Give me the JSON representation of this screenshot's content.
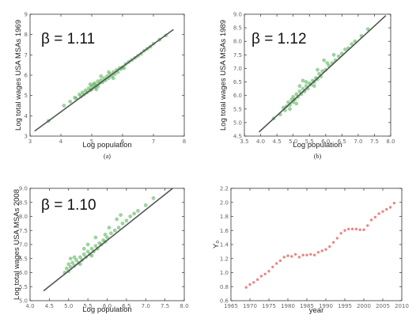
{
  "colors": {
    "scatter": "#4caf50",
    "fit": "#555555",
    "gamma": "#e57373"
  },
  "chart_data": [
    {
      "type": "scatter",
      "annotation": "β = 1.11",
      "xlabel": "Log population",
      "ylabel": "Log total wages USA MSAs 1969",
      "caption": "(a)",
      "xlim": [
        3,
        8
      ],
      "ylim": [
        3,
        9
      ],
      "xticks": [
        3,
        4,
        5,
        6,
        7,
        8
      ],
      "yticks": [
        3,
        4,
        5,
        6,
        7,
        8,
        9
      ],
      "fit_line": {
        "x": [
          3.15,
          7.65
        ],
        "y": [
          3.25,
          8.25
        ]
      },
      "points": [
        [
          3.6,
          3.75
        ],
        [
          4.1,
          4.5
        ],
        [
          4.3,
          4.7
        ],
        [
          4.45,
          4.9
        ],
        [
          4.5,
          4.85
        ],
        [
          4.6,
          5.05
        ],
        [
          4.65,
          4.95
        ],
        [
          4.7,
          5.15
        ],
        [
          4.75,
          5.05
        ],
        [
          4.8,
          5.25
        ],
        [
          4.85,
          5.15
        ],
        [
          4.9,
          5.35
        ],
        [
          4.95,
          5.25
        ],
        [
          5.0,
          5.45
        ],
        [
          5.0,
          5.3
        ],
        [
          5.05,
          5.55
        ],
        [
          5.1,
          5.4
        ],
        [
          5.1,
          5.6
        ],
        [
          5.15,
          5.5
        ],
        [
          5.2,
          5.7
        ],
        [
          5.2,
          5.45
        ],
        [
          5.25,
          5.6
        ],
        [
          5.3,
          5.75
        ],
        [
          5.35,
          5.65
        ],
        [
          5.4,
          5.85
        ],
        [
          5.45,
          5.75
        ],
        [
          5.5,
          5.95
        ],
        [
          5.55,
          5.85
        ],
        [
          5.6,
          6.05
        ],
        [
          5.65,
          5.95
        ],
        [
          5.7,
          6.15
        ],
        [
          5.75,
          6.05
        ],
        [
          5.8,
          6.25
        ],
        [
          5.85,
          6.15
        ],
        [
          5.9,
          6.35
        ],
        [
          5.95,
          6.3
        ],
        [
          6.0,
          6.4
        ],
        [
          6.05,
          6.35
        ],
        [
          6.1,
          6.55
        ],
        [
          6.2,
          6.65
        ],
        [
          6.3,
          6.75
        ],
        [
          6.4,
          6.85
        ],
        [
          6.5,
          6.95
        ],
        [
          6.6,
          7.05
        ],
        [
          6.7,
          7.2
        ],
        [
          6.8,
          7.3
        ],
        [
          6.9,
          7.4
        ],
        [
          7.0,
          7.55
        ],
        [
          7.2,
          7.75
        ],
        [
          7.4,
          7.95
        ],
        [
          5.3,
          5.95
        ],
        [
          5.55,
          6.15
        ],
        [
          4.95,
          5.55
        ],
        [
          5.7,
          5.85
        ],
        [
          5.15,
          5.3
        ]
      ]
    },
    {
      "type": "scatter",
      "annotation": "β = 1.12",
      "xlabel": "Log population",
      "ylabel": "Log total wages USA MSAs 1989",
      "caption": "(b)",
      "xlim": [
        3.5,
        8.0
      ],
      "ylim": [
        4.5,
        9.0
      ],
      "xticks": [
        3.5,
        4.0,
        4.5,
        5.0,
        5.5,
        6.0,
        6.5,
        7.0,
        7.5,
        8.0
      ],
      "yticks": [
        4.5,
        5.0,
        5.5,
        6.0,
        6.5,
        7.0,
        7.5,
        8.0,
        8.5,
        9.0
      ],
      "fit_line": {
        "x": [
          3.95,
          7.85
        ],
        "y": [
          4.65,
          8.95
        ]
      },
      "points": [
        [
          4.4,
          5.15
        ],
        [
          4.6,
          5.3
        ],
        [
          4.7,
          5.55
        ],
        [
          4.75,
          5.45
        ],
        [
          4.8,
          5.6
        ],
        [
          4.85,
          5.75
        ],
        [
          4.9,
          5.65
        ],
        [
          4.95,
          5.85
        ],
        [
          5.0,
          5.75
        ],
        [
          5.0,
          5.95
        ],
        [
          5.05,
          5.85
        ],
        [
          5.1,
          6.05
        ],
        [
          5.15,
          5.95
        ],
        [
          5.2,
          6.15
        ],
        [
          5.25,
          6.05
        ],
        [
          5.3,
          6.25
        ],
        [
          5.35,
          6.15
        ],
        [
          5.4,
          6.35
        ],
        [
          5.45,
          6.25
        ],
        [
          5.5,
          6.45
        ],
        [
          5.55,
          6.4
        ],
        [
          5.6,
          6.55
        ],
        [
          5.65,
          6.5
        ],
        [
          5.7,
          6.65
        ],
        [
          5.75,
          6.6
        ],
        [
          5.8,
          6.8
        ],
        [
          5.85,
          6.7
        ],
        [
          5.9,
          6.9
        ],
        [
          6.0,
          6.95
        ],
        [
          6.1,
          7.1
        ],
        [
          6.2,
          7.2
        ],
        [
          6.3,
          7.3
        ],
        [
          6.4,
          7.45
        ],
        [
          6.5,
          7.55
        ],
        [
          6.6,
          7.7
        ],
        [
          6.7,
          7.75
        ],
        [
          6.8,
          7.9
        ],
        [
          6.9,
          8.0
        ],
        [
          7.1,
          8.2
        ],
        [
          7.3,
          8.45
        ],
        [
          5.2,
          6.35
        ],
        [
          5.4,
          6.5
        ],
        [
          4.9,
          5.5
        ],
        [
          5.65,
          6.35
        ],
        [
          6.05,
          7.2
        ],
        [
          5.95,
          7.3
        ],
        [
          5.3,
          6.55
        ],
        [
          6.25,
          7.5
        ],
        [
          5.1,
          5.7
        ],
        [
          5.75,
          6.95
        ]
      ]
    },
    {
      "type": "scatter",
      "annotation": "β = 1.10",
      "xlabel": "Log population",
      "ylabel": "Log total wages USA MSAs 2008",
      "caption": "",
      "xlim": [
        4.0,
        8.0
      ],
      "ylim": [
        5.0,
        9.0
      ],
      "xticks": [
        4.0,
        4.5,
        5.0,
        5.5,
        6.0,
        6.5,
        7.0,
        7.5,
        8.0
      ],
      "yticks": [
        5.0,
        5.5,
        6.0,
        6.5,
        7.0,
        7.5,
        8.0,
        8.5,
        9.0
      ],
      "fit_line": {
        "x": [
          4.35,
          7.7
        ],
        "y": [
          5.35,
          9.0
        ]
      },
      "points": [
        [
          4.9,
          6.0
        ],
        [
          4.95,
          6.15
        ],
        [
          5.0,
          6.05
        ],
        [
          5.0,
          6.3
        ],
        [
          5.05,
          6.2
        ],
        [
          5.1,
          6.35
        ],
        [
          5.15,
          6.25
        ],
        [
          5.2,
          6.45
        ],
        [
          5.25,
          6.35
        ],
        [
          5.3,
          6.55
        ],
        [
          5.35,
          6.45
        ],
        [
          5.4,
          6.65
        ],
        [
          5.45,
          6.55
        ],
        [
          5.5,
          6.75
        ],
        [
          5.55,
          6.65
        ],
        [
          5.6,
          6.85
        ],
        [
          5.65,
          6.75
        ],
        [
          5.7,
          6.95
        ],
        [
          5.75,
          6.85
        ],
        [
          5.8,
          7.05
        ],
        [
          5.85,
          7.0
        ],
        [
          5.9,
          7.15
        ],
        [
          5.95,
          7.1
        ],
        [
          6.0,
          7.25
        ],
        [
          6.1,
          7.4
        ],
        [
          6.2,
          7.5
        ],
        [
          6.3,
          7.6
        ],
        [
          6.4,
          7.75
        ],
        [
          6.5,
          7.85
        ],
        [
          6.6,
          8.0
        ],
        [
          6.7,
          8.1
        ],
        [
          6.8,
          8.2
        ],
        [
          7.0,
          8.4
        ],
        [
          7.2,
          8.65
        ],
        [
          5.05,
          6.5
        ],
        [
          5.3,
          6.3
        ],
        [
          5.5,
          7.0
        ],
        [
          5.7,
          7.25
        ],
        [
          6.05,
          7.6
        ],
        [
          6.25,
          7.9
        ],
        [
          5.15,
          6.55
        ],
        [
          5.6,
          6.6
        ],
        [
          6.35,
          8.05
        ],
        [
          5.95,
          7.35
        ],
        [
          5.4,
          6.85
        ]
      ]
    },
    {
      "type": "scatter",
      "xlabel": "year",
      "ylabel": "Y₀",
      "caption": "",
      "xlim": [
        1965,
        2010
      ],
      "ylim": [
        0.6,
        2.2
      ],
      "xticks": [
        1965,
        1970,
        1975,
        1980,
        1985,
        1990,
        1995,
        2000,
        2005,
        2010
      ],
      "yticks": [
        0.6,
        0.8,
        1.0,
        1.2,
        1.4,
        1.6,
        1.8,
        2.0,
        2.2
      ],
      "points": [
        [
          1969,
          0.79
        ],
        [
          1970,
          0.83
        ],
        [
          1971,
          0.86
        ],
        [
          1972,
          0.9
        ],
        [
          1973,
          0.95
        ],
        [
          1974,
          0.98
        ],
        [
          1975,
          1.02
        ],
        [
          1976,
          1.08
        ],
        [
          1977,
          1.13
        ],
        [
          1978,
          1.17
        ],
        [
          1979,
          1.22
        ],
        [
          1980,
          1.24
        ],
        [
          1981,
          1.23
        ],
        [
          1982,
          1.26
        ],
        [
          1983,
          1.22
        ],
        [
          1984,
          1.25
        ],
        [
          1985,
          1.25
        ],
        [
          1986,
          1.26
        ],
        [
          1987,
          1.25
        ],
        [
          1988,
          1.29
        ],
        [
          1989,
          1.31
        ],
        [
          1990,
          1.33
        ],
        [
          1991,
          1.37
        ],
        [
          1992,
          1.43
        ],
        [
          1993,
          1.49
        ],
        [
          1994,
          1.56
        ],
        [
          1995,
          1.6
        ],
        [
          1996,
          1.62
        ],
        [
          1997,
          1.62
        ],
        [
          1998,
          1.62
        ],
        [
          1999,
          1.61
        ],
        [
          2000,
          1.61
        ],
        [
          2001,
          1.67
        ],
        [
          2002,
          1.75
        ],
        [
          2003,
          1.79
        ],
        [
          2004,
          1.84
        ],
        [
          2005,
          1.87
        ],
        [
          2006,
          1.9
        ],
        [
          2007,
          1.93
        ],
        [
          2008,
          1.99
        ]
      ]
    }
  ]
}
